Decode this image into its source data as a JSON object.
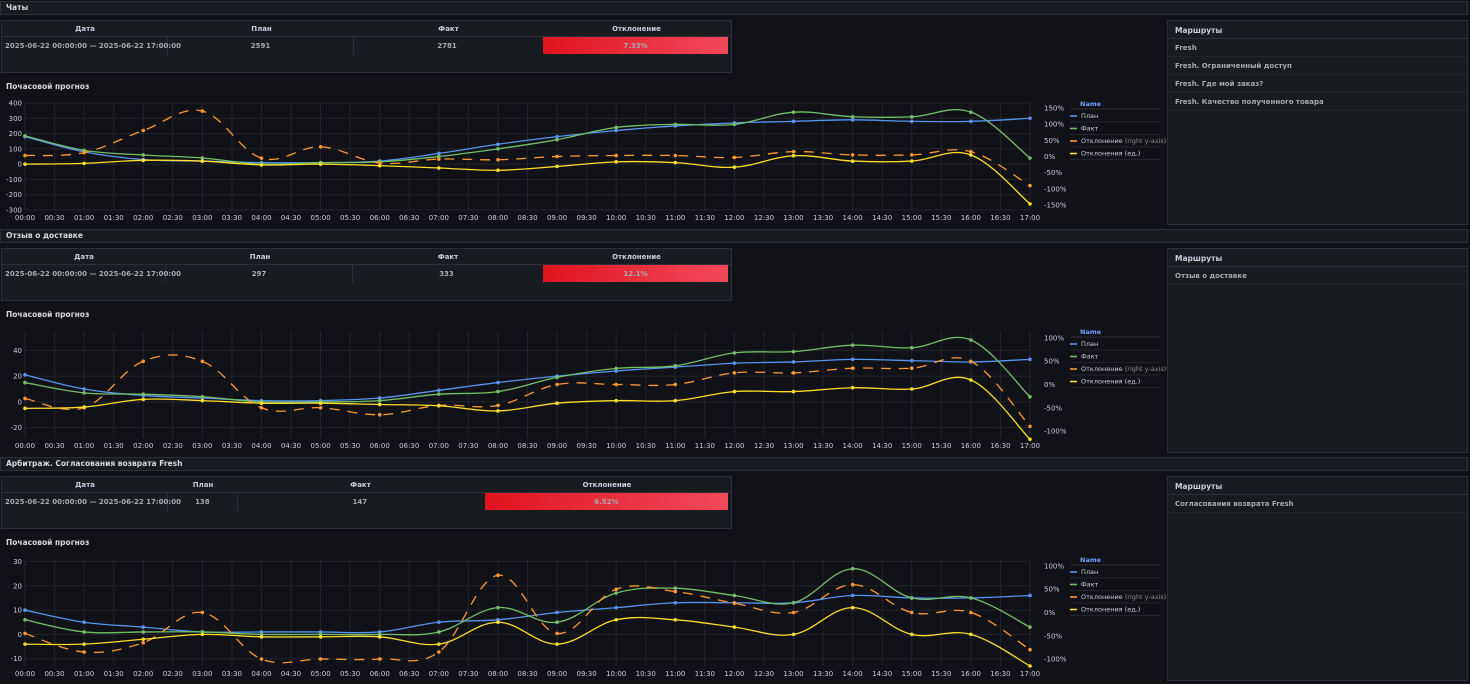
{
  "sections": [
    {
      "title": "Чаты",
      "table": {
        "headers": [
          "Дата",
          "План",
          "Факт",
          "Отклонение"
        ],
        "date": "2025-06-22 00:00:00 — 2025-06-22 17:00:00",
        "plan": "2591",
        "fact": "2781",
        "deviation": "7.33%"
      },
      "routes": {
        "header": "Маршруты",
        "items": [
          "Fresh",
          "Fresh. Ограниченный доступ",
          "Fresh. Где мой заказ?",
          "Fresh. Качество полученного товара"
        ]
      },
      "chart_title": "Почасовой прогноз",
      "chart_data": {
        "type": "line",
        "x": [
          "00:00",
          "01:00",
          "02:00",
          "03:00",
          "04:00",
          "05:00",
          "06:00",
          "07:00",
          "08:00",
          "09:00",
          "10:00",
          "11:00",
          "12:00",
          "13:00",
          "14:00",
          "15:00",
          "16:00",
          "17:00"
        ],
        "y_ticks": [
          "400",
          "300",
          "200",
          "100",
          "0",
          "-100",
          "-200",
          "-300"
        ],
        "y_range": [
          -300,
          400
        ],
        "y2_ticks": [
          "150%",
          "100%",
          "50%",
          "0%",
          "-50%",
          "-100%",
          "-150%"
        ],
        "y2_range": [
          -165,
          165
        ],
        "series": [
          {
            "name": "План",
            "axis": "left",
            "color": "#5794f2",
            "values": [
              180,
              80,
              30,
              20,
              10,
              10,
              20,
              70,
              130,
              180,
              220,
              250,
              270,
              280,
              290,
              280,
              280,
              300
            ]
          },
          {
            "name": "Факт",
            "axis": "left",
            "color": "#73bf69",
            "values": [
              185,
              90,
              60,
              40,
              0,
              10,
              15,
              50,
              100,
              160,
              240,
              260,
              260,
              340,
              310,
              310,
              340,
              40
            ]
          },
          {
            "name": "Отклонение",
            "axis": "right",
            "color": "#ff9830",
            "values": [
              3,
              12,
              80,
              140,
              -5,
              30,
              -20,
              -8,
              -10,
              0,
              3,
              3,
              -3,
              15,
              5,
              5,
              15,
              -90
            ]
          },
          {
            "name": "Отклонения (ед.)",
            "axis": "left",
            "color": "#fade2a",
            "values": [
              0,
              5,
              25,
              20,
              -5,
              0,
              -10,
              -25,
              -40,
              -15,
              15,
              10,
              -20,
              55,
              20,
              20,
              60,
              -260
            ]
          }
        ]
      }
    },
    {
      "title": "Отзыв о доставке",
      "table": {
        "headers": [
          "Дата",
          "План",
          "Факт",
          "Отклонение"
        ],
        "date": "2025-06-22 00:00:00 — 2025-06-22 17:00:00",
        "plan": "297",
        "fact": "333",
        "deviation": "12.1%"
      },
      "routes": {
        "header": "Маршруты",
        "items": [
          "Отзыв о доставке"
        ]
      },
      "chart_title": "Почасовой прогноз",
      "chart_data": {
        "type": "line",
        "x": [
          "00:00",
          "01:00",
          "02:00",
          "03:00",
          "04:00",
          "05:00",
          "06:00",
          "07:00",
          "08:00",
          "09:00",
          "10:00",
          "11:00",
          "12:00",
          "13:00",
          "14:00",
          "15:00",
          "16:00",
          "17:00"
        ],
        "y_ticks": [
          "40",
          "20",
          "0",
          "-20"
        ],
        "y_range": [
          -28,
          55
        ],
        "y2_ticks": [
          "100%",
          "50%",
          "0%",
          "-50%",
          "-100%"
        ],
        "y2_range": [
          -115,
          115
        ],
        "series": [
          {
            "name": "План",
            "axis": "left",
            "color": "#5794f2",
            "values": [
              21,
              10,
              5,
              3,
              1,
              1,
              3,
              9,
              15,
              20,
              24,
              27,
              30,
              31,
              33,
              32,
              31,
              33
            ]
          },
          {
            "name": "Факт",
            "axis": "left",
            "color": "#73bf69",
            "values": [
              15,
              7,
              6,
              4,
              0,
              0,
              1,
              6,
              8,
              19,
              26,
              28,
              38,
              39,
              44,
              42,
              48,
              4
            ]
          },
          {
            "name": "Отклонение",
            "axis": "right",
            "color": "#ff9830",
            "values": [
              -30,
              -50,
              50,
              50,
              -50,
              -50,
              -65,
              -45,
              -45,
              0,
              0,
              0,
              25,
              25,
              35,
              35,
              50,
              -90
            ]
          },
          {
            "name": "Отклонения (ед.)",
            "axis": "left",
            "color": "#fade2a",
            "values": [
              -5,
              -4,
              2,
              1,
              -1,
              -1,
              -2,
              -3,
              -7,
              -1,
              1,
              1,
              8,
              8,
              11,
              10,
              17,
              -29
            ]
          }
        ]
      }
    },
    {
      "title": "Арбитраж. Согласования возврата Fresh",
      "table": {
        "headers": [
          "Дата",
          "План",
          "Факт",
          "Отклонение"
        ],
        "date": "2025-06-22 00:00:00 — 2025-06-22 17:00:00",
        "plan": "138",
        "fact": "147",
        "deviation": "6.52%"
      },
      "routes": {
        "header": "Маршруты",
        "items": [
          "Согласования возврата Fresh"
        ]
      },
      "chart_title": "Почасовой прогноз",
      "chart_data": {
        "type": "line",
        "x": [
          "00:00",
          "01:00",
          "02:00",
          "03:00",
          "04:00",
          "05:00",
          "06:00",
          "07:00",
          "08:00",
          "09:00",
          "10:00",
          "11:00",
          "12:00",
          "13:00",
          "14:00",
          "15:00",
          "16:00",
          "17:00"
        ],
        "y_ticks": [
          "30",
          "20",
          "10",
          "0",
          "-10"
        ],
        "y_range": [
          -13,
          31
        ],
        "y2_ticks": [
          "100%",
          "50%",
          "0%",
          "-50%",
          "-100%"
        ],
        "y2_range": [
          -115,
          115
        ],
        "series": [
          {
            "name": "План",
            "axis": "left",
            "color": "#5794f2",
            "values": [
              10,
              5,
              3,
              1,
              1,
              1,
              1,
              5,
              6,
              9,
              11,
              13,
              13,
              13,
              16,
              15,
              15,
              16
            ]
          },
          {
            "name": "Факт",
            "axis": "left",
            "color": "#73bf69",
            "values": [
              6,
              1,
              1,
              1,
              0,
              0,
              0,
              1,
              11,
              5,
              17,
              19,
              16,
              13,
              27,
              15,
              15,
              3
            ]
          },
          {
            "name": "Отклонение",
            "axis": "right",
            "color": "#ff9830",
            "values": [
              -45,
              -85,
              -65,
              0,
              -100,
              -100,
              -100,
              -85,
              80,
              -45,
              50,
              45,
              20,
              0,
              60,
              0,
              0,
              -80
            ]
          },
          {
            "name": "Отклонения (ед.)",
            "axis": "left",
            "color": "#fade2a",
            "values": [
              -4,
              -4,
              -2,
              0,
              -1,
              -1,
              -1,
              -4,
              5,
              -4,
              6,
              6,
              3,
              0,
              11,
              0,
              0,
              -13
            ]
          }
        ]
      }
    }
  ],
  "legend": {
    "header": "Name",
    "items": [
      {
        "label": "План",
        "color": "#5794f2",
        "suffix": ""
      },
      {
        "label": "Факт",
        "color": "#73bf69",
        "suffix": ""
      },
      {
        "label": "Отклонение",
        "color": "#ff9830",
        "suffix": "(right y-axis)"
      },
      {
        "label": "Отклонения (ед.)",
        "color": "#fade2a",
        "suffix": ""
      }
    ]
  },
  "x_ticks": [
    "00:00",
    "00:30",
    "01:00",
    "01:30",
    "02:00",
    "02:30",
    "03:00",
    "03:30",
    "04:00",
    "04:30",
    "05:00",
    "05:30",
    "06:00",
    "06:30",
    "07:00",
    "07:30",
    "08:00",
    "08:30",
    "09:00",
    "09:30",
    "10:00",
    "10:30",
    "11:00",
    "11:30",
    "12:00",
    "12:30",
    "13:00",
    "13:30",
    "14:00",
    "14:30",
    "15:00",
    "15:30",
    "16:00",
    "16:30",
    "17:00"
  ]
}
